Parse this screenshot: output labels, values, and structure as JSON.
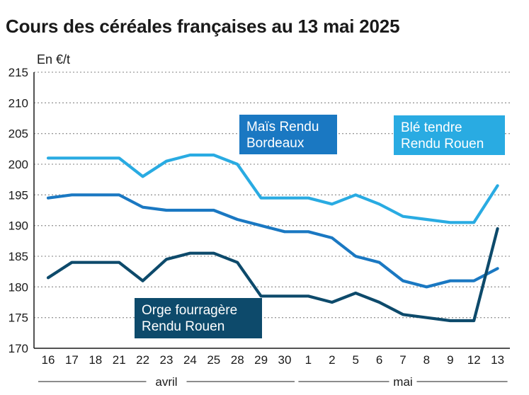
{
  "title": "Cours des céréales françaises au 13 mai 2025",
  "chart_data": {
    "type": "line",
    "title": "Cours des céréales françaises au 13 mai 2025",
    "ylabel": "En €/t",
    "xlabel": "",
    "ylim": [
      170,
      215
    ],
    "yticks": [
      170,
      175,
      180,
      185,
      190,
      195,
      200,
      205,
      210,
      215
    ],
    "grid": true,
    "categories": [
      "16",
      "17",
      "18",
      "21",
      "22",
      "23",
      "24",
      "25",
      "28",
      "29",
      "30",
      "1",
      "2",
      "5",
      "6",
      "7",
      "8",
      "9",
      "12",
      "13"
    ],
    "month_groups": [
      {
        "label": "avril",
        "from": 0,
        "to": 10
      },
      {
        "label": "mai",
        "from": 11,
        "to": 19
      }
    ],
    "series": [
      {
        "name": "Blé tendre Rendu Rouen",
        "label_lines": [
          "Blé tendre",
          "Rendu Rouen"
        ],
        "color": "#29abe2",
        "values": [
          201,
          201,
          201,
          201,
          198,
          200.5,
          201.5,
          201.5,
          200,
          194.5,
          194.5,
          194.5,
          193.5,
          195,
          193.5,
          191.5,
          191,
          190.5,
          190.5,
          196.5
        ]
      },
      {
        "name": "Maïs Rendu Bordeaux",
        "label_lines": [
          "Maïs Rendu",
          "Bordeaux"
        ],
        "color": "#1a78c2",
        "values": [
          194.5,
          195,
          195,
          195,
          193,
          192.5,
          192.5,
          192.5,
          191,
          190,
          189,
          189,
          188,
          185,
          184,
          181,
          180,
          181,
          181,
          183
        ]
      },
      {
        "name": "Orge fourragère Rendu Rouen",
        "label_lines": [
          "Orge fourragère",
          "Rendu Rouen"
        ],
        "color": "#0d4a6b",
        "values": [
          181.5,
          184,
          184,
          184,
          181,
          184.5,
          185.5,
          185.5,
          184,
          178.5,
          178.5,
          178.5,
          177.5,
          179,
          177.5,
          175.5,
          175,
          174.5,
          174.5,
          189.5
        ]
      }
    ]
  }
}
